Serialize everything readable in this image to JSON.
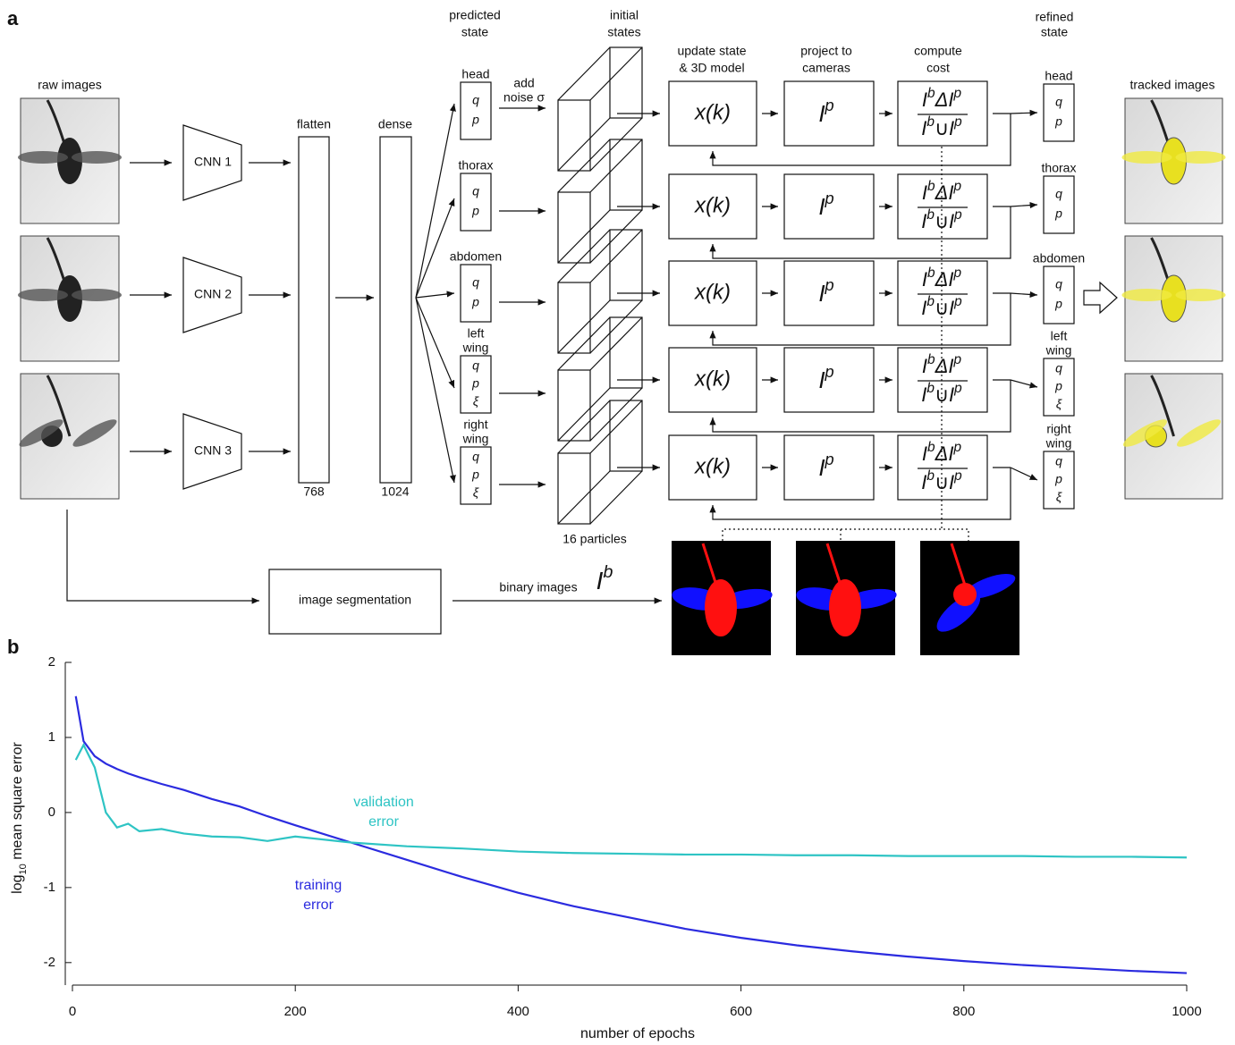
{
  "diagram": {
    "panel_labels": [
      "a",
      "b"
    ],
    "raw_images_label": "raw images",
    "cnn_labels": [
      "CNN 1",
      "CNN 2",
      "CNN 3"
    ],
    "flatten": {
      "label": "flatten",
      "size": 768
    },
    "dense": {
      "label": "dense",
      "size": 1024
    },
    "predicted_state_label": [
      "predicted",
      "state"
    ],
    "noise_label": [
      "add",
      "noise σ"
    ],
    "initial_states_label": [
      "initial",
      "states"
    ],
    "particles_label": "16 particles",
    "columns": {
      "update": [
        "update state",
        "& 3D model"
      ],
      "project": [
        "project to",
        "cameras"
      ],
      "cost": [
        "compute",
        "cost"
      ]
    },
    "update_text": "x(k)",
    "project_text": [
      "I",
      "p"
    ],
    "cost_numerator": [
      "I",
      "b",
      "Δ",
      "I",
      "p"
    ],
    "cost_denominator": [
      "I",
      "b",
      "∪",
      "I",
      "p"
    ],
    "refined_state_label": [
      "refined",
      "state"
    ],
    "parts": [
      {
        "label": [
          "head"
        ],
        "variables": [
          "q",
          "p"
        ]
      },
      {
        "label": [
          "thorax"
        ],
        "variables": [
          "q",
          "p"
        ]
      },
      {
        "label": [
          "abdomen"
        ],
        "variables": [
          "q",
          "p"
        ]
      },
      {
        "label": [
          "left",
          "wing"
        ],
        "variables": [
          "q",
          "p",
          "ξ"
        ]
      },
      {
        "label": [
          "right",
          "wing"
        ],
        "variables": [
          "q",
          "p",
          "ξ"
        ]
      }
    ],
    "tracked_images_label": "tracked images",
    "segmentation_label": "image segmentation",
    "binary_images_label": "binary images",
    "binary_symbol": [
      "I",
      "b"
    ]
  },
  "chart_data": {
    "type": "line",
    "xlabel": "number of epochs",
    "ylabel": [
      "log",
      "10",
      " mean square error"
    ],
    "xlim": [
      0,
      1000
    ],
    "ylim": [
      -2.3,
      2
    ],
    "xticks": [
      0,
      200,
      400,
      600,
      800,
      1000
    ],
    "yticks": [
      2,
      1,
      0,
      -1,
      -2
    ],
    "x": [
      3,
      10,
      20,
      30,
      40,
      50,
      60,
      80,
      100,
      125,
      150,
      175,
      200,
      250,
      300,
      350,
      400,
      450,
      500,
      550,
      600,
      650,
      700,
      750,
      800,
      850,
      900,
      950,
      1000
    ],
    "series": [
      {
        "name": [
          "training",
          "error"
        ],
        "color": "#2b2bdf",
        "values": [
          1.55,
          0.95,
          0.75,
          0.65,
          0.58,
          0.52,
          0.47,
          0.38,
          0.3,
          0.18,
          0.08,
          -0.05,
          -0.17,
          -0.4,
          -0.63,
          -0.86,
          -1.07,
          -1.25,
          -1.4,
          -1.55,
          -1.67,
          -1.77,
          -1.85,
          -1.92,
          -1.98,
          -2.03,
          -2.07,
          -2.11,
          -2.14
        ]
      },
      {
        "name": [
          "validation",
          "error"
        ],
        "color": "#2ec4c4",
        "values": [
          0.7,
          0.9,
          0.6,
          0.0,
          -0.2,
          -0.15,
          -0.25,
          -0.22,
          -0.28,
          -0.32,
          -0.33,
          -0.38,
          -0.32,
          -0.4,
          -0.45,
          -0.48,
          -0.52,
          -0.54,
          -0.55,
          -0.56,
          -0.56,
          -0.57,
          -0.57,
          -0.58,
          -0.58,
          -0.58,
          -0.59,
          -0.59,
          -0.6
        ]
      }
    ]
  }
}
